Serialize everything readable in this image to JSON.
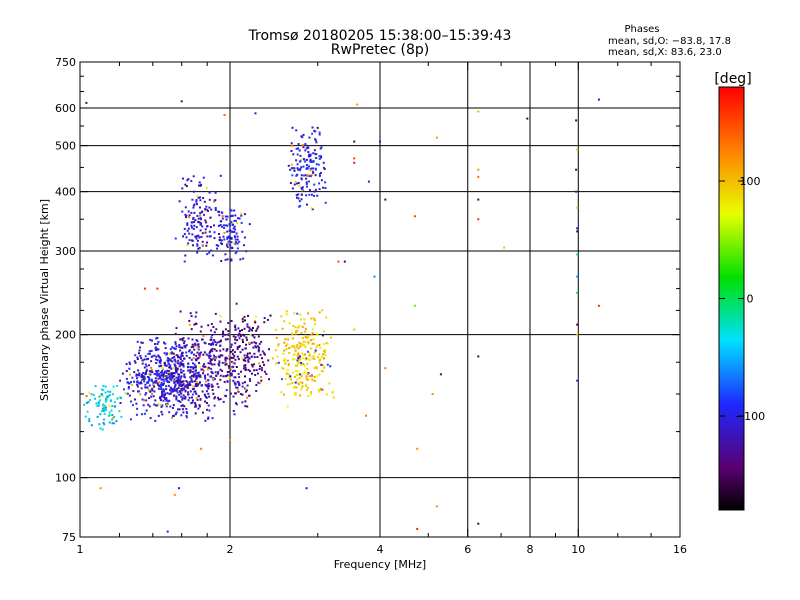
{
  "chart_data": {
    "type": "scatter",
    "title": "Tromsø 20180205 15:38:00–15:39:43",
    "subtitle": "RwPretec (8p)",
    "xlabel": "Frequency [MHz]",
    "ylabel": "Stationary phase Virtual Height [km]",
    "x_scale": "log",
    "y_scale": "log",
    "xlim": [
      1,
      16
    ],
    "ylim": [
      75,
      750
    ],
    "x_ticks": [
      1,
      2,
      4,
      6,
      8,
      10,
      16
    ],
    "x_tick_labels": [
      "1",
      "2",
      "4",
      "6",
      "8",
      "10",
      "16"
    ],
    "x_minor_ticks": [
      1.2,
      1.4,
      1.6,
      1.8,
      3,
      5,
      7,
      9,
      12,
      14
    ],
    "y_ticks": [
      75,
      100,
      200,
      300,
      400,
      500,
      600,
      750
    ],
    "y_tick_labels": [
      "75",
      "100",
      "200",
      "300",
      "400",
      "500",
      "600",
      "750"
    ],
    "y_minor_ticks": [
      125,
      150,
      175,
      225,
      250,
      275,
      350,
      450,
      550,
      650,
      700
    ],
    "grid_x": [
      2,
      4,
      6,
      8,
      10
    ],
    "grid_y": [
      100,
      200,
      300,
      400,
      500,
      600
    ],
    "phases_header": "Phases",
    "stats": [
      "mean, sd,O: −83.8, 17.8",
      "mean, sd,X: 83.6, 23.0"
    ],
    "colorbar": {
      "label": "[deg]",
      "min": -180,
      "max": 180,
      "ticks": [
        100,
        0,
        -100
      ],
      "tick_labels": [
        "100",
        "0",
        "−100"
      ],
      "colormap": "rainbow (black-purple-blue-cyan-green-yellow-orange-red)"
    },
    "clusters": [
      {
        "x": [
          1.0,
          1.25
        ],
        "y": [
          125,
          160
        ],
        "phase": -40,
        "count": 90
      },
      {
        "x": [
          1.2,
          1.9
        ],
        "y": [
          130,
          200
        ],
        "phase": -105,
        "count": 650
      },
      {
        "x": [
          1.5,
          2.4
        ],
        "y": [
          135,
          230
        ],
        "phase": -125,
        "count": 380
      },
      {
        "x": [
          1.55,
          1.95
        ],
        "y": [
          280,
          440
        ],
        "phase": -110,
        "count": 150
      },
      {
        "x": [
          1.85,
          2.2
        ],
        "y": [
          280,
          380
        ],
        "phase": -105,
        "count": 110
      },
      {
        "x": [
          2.6,
          3.15
        ],
        "y": [
          360,
          560
        ],
        "phase": -100,
        "count": 160
      },
      {
        "x": [
          2.4,
          3.3
        ],
        "y": [
          140,
          230
        ],
        "phase": 95,
        "count": 270
      },
      {
        "x": [
          2.0,
          2.45
        ],
        "y": [
          150,
          240
        ],
        "phase": -140,
        "count": 80
      }
    ],
    "sparse_points": [
      {
        "x": 1.03,
        "y": 615,
        "phase": -140
      },
      {
        "x": 1.6,
        "y": 620,
        "phase": -140
      },
      {
        "x": 1.95,
        "y": 580,
        "phase": 140
      },
      {
        "x": 2.25,
        "y": 585,
        "phase": -120
      },
      {
        "x": 3.0,
        "y": 545,
        "phase": -150
      },
      {
        "x": 3.55,
        "y": 510,
        "phase": -150
      },
      {
        "x": 3.55,
        "y": 470,
        "phase": 150
      },
      {
        "x": 3.55,
        "y": 460,
        "phase": 175
      },
      {
        "x": 3.6,
        "y": 610,
        "phase": 115
      },
      {
        "x": 4.0,
        "y": 510,
        "phase": -110
      },
      {
        "x": 3.8,
        "y": 420,
        "phase": -110
      },
      {
        "x": 4.1,
        "y": 385,
        "phase": -150
      },
      {
        "x": 4.7,
        "y": 355,
        "phase": 155
      },
      {
        "x": 5.2,
        "y": 520,
        "phase": 120
      },
      {
        "x": 6.3,
        "y": 590,
        "phase": 105
      },
      {
        "x": 6.3,
        "y": 445,
        "phase": 120
      },
      {
        "x": 6.3,
        "y": 430,
        "phase": 140
      },
      {
        "x": 6.3,
        "y": 385,
        "phase": -150
      },
      {
        "x": 6.3,
        "y": 350,
        "phase": 160
      },
      {
        "x": 7.1,
        "y": 305,
        "phase": 100
      },
      {
        "x": 7.9,
        "y": 570,
        "phase": -150
      },
      {
        "x": 9.9,
        "y": 565,
        "phase": -150
      },
      {
        "x": 9.95,
        "y": 490,
        "phase": 100
      },
      {
        "x": 9.9,
        "y": 445,
        "phase": -150
      },
      {
        "x": 9.9,
        "y": 400,
        "phase": -120
      },
      {
        "x": 9.95,
        "y": 370,
        "phase": 100
      },
      {
        "x": 9.95,
        "y": 335,
        "phase": -120
      },
      {
        "x": 9.95,
        "y": 330,
        "phase": -150
      },
      {
        "x": 9.95,
        "y": 295,
        "phase": -10
      },
      {
        "x": 9.95,
        "y": 265,
        "phase": -60
      },
      {
        "x": 9.95,
        "y": 245,
        "phase": 10
      },
      {
        "x": 9.95,
        "y": 210,
        "phase": -150
      },
      {
        "x": 9.95,
        "y": 200,
        "phase": 100
      },
      {
        "x": 9.95,
        "y": 160,
        "phase": -110
      },
      {
        "x": 11.0,
        "y": 625,
        "phase": -120
      },
      {
        "x": 11.0,
        "y": 230,
        "phase": 160
      },
      {
        "x": 3.9,
        "y": 265,
        "phase": -60
      },
      {
        "x": 4.7,
        "y": 230,
        "phase": 40
      },
      {
        "x": 3.4,
        "y": 285,
        "phase": -150
      },
      {
        "x": 3.3,
        "y": 285,
        "phase": 150
      },
      {
        "x": 4.1,
        "y": 170,
        "phase": 130
      },
      {
        "x": 3.55,
        "y": 205,
        "phase": 100
      },
      {
        "x": 3.75,
        "y": 135,
        "phase": 130
      },
      {
        "x": 5.1,
        "y": 150,
        "phase": 120
      },
      {
        "x": 5.3,
        "y": 165,
        "phase": -140
      },
      {
        "x": 6.3,
        "y": 180,
        "phase": -150
      },
      {
        "x": 4.75,
        "y": 115,
        "phase": 120
      },
      {
        "x": 4.75,
        "y": 78,
        "phase": 165
      },
      {
        "x": 5.2,
        "y": 87,
        "phase": 120
      },
      {
        "x": 6.3,
        "y": 80,
        "phase": -150
      },
      {
        "x": 1.1,
        "y": 95,
        "phase": 120
      },
      {
        "x": 1.35,
        "y": 250,
        "phase": 165
      },
      {
        "x": 1.43,
        "y": 250,
        "phase": 160
      },
      {
        "x": 1.55,
        "y": 92,
        "phase": 120
      },
      {
        "x": 1.58,
        "y": 95,
        "phase": -110
      },
      {
        "x": 1.5,
        "y": 77,
        "phase": -110
      },
      {
        "x": 1.75,
        "y": 115,
        "phase": 130
      },
      {
        "x": 2.0,
        "y": 120,
        "phase": 120
      },
      {
        "x": 2.85,
        "y": 95,
        "phase": -110
      }
    ]
  }
}
